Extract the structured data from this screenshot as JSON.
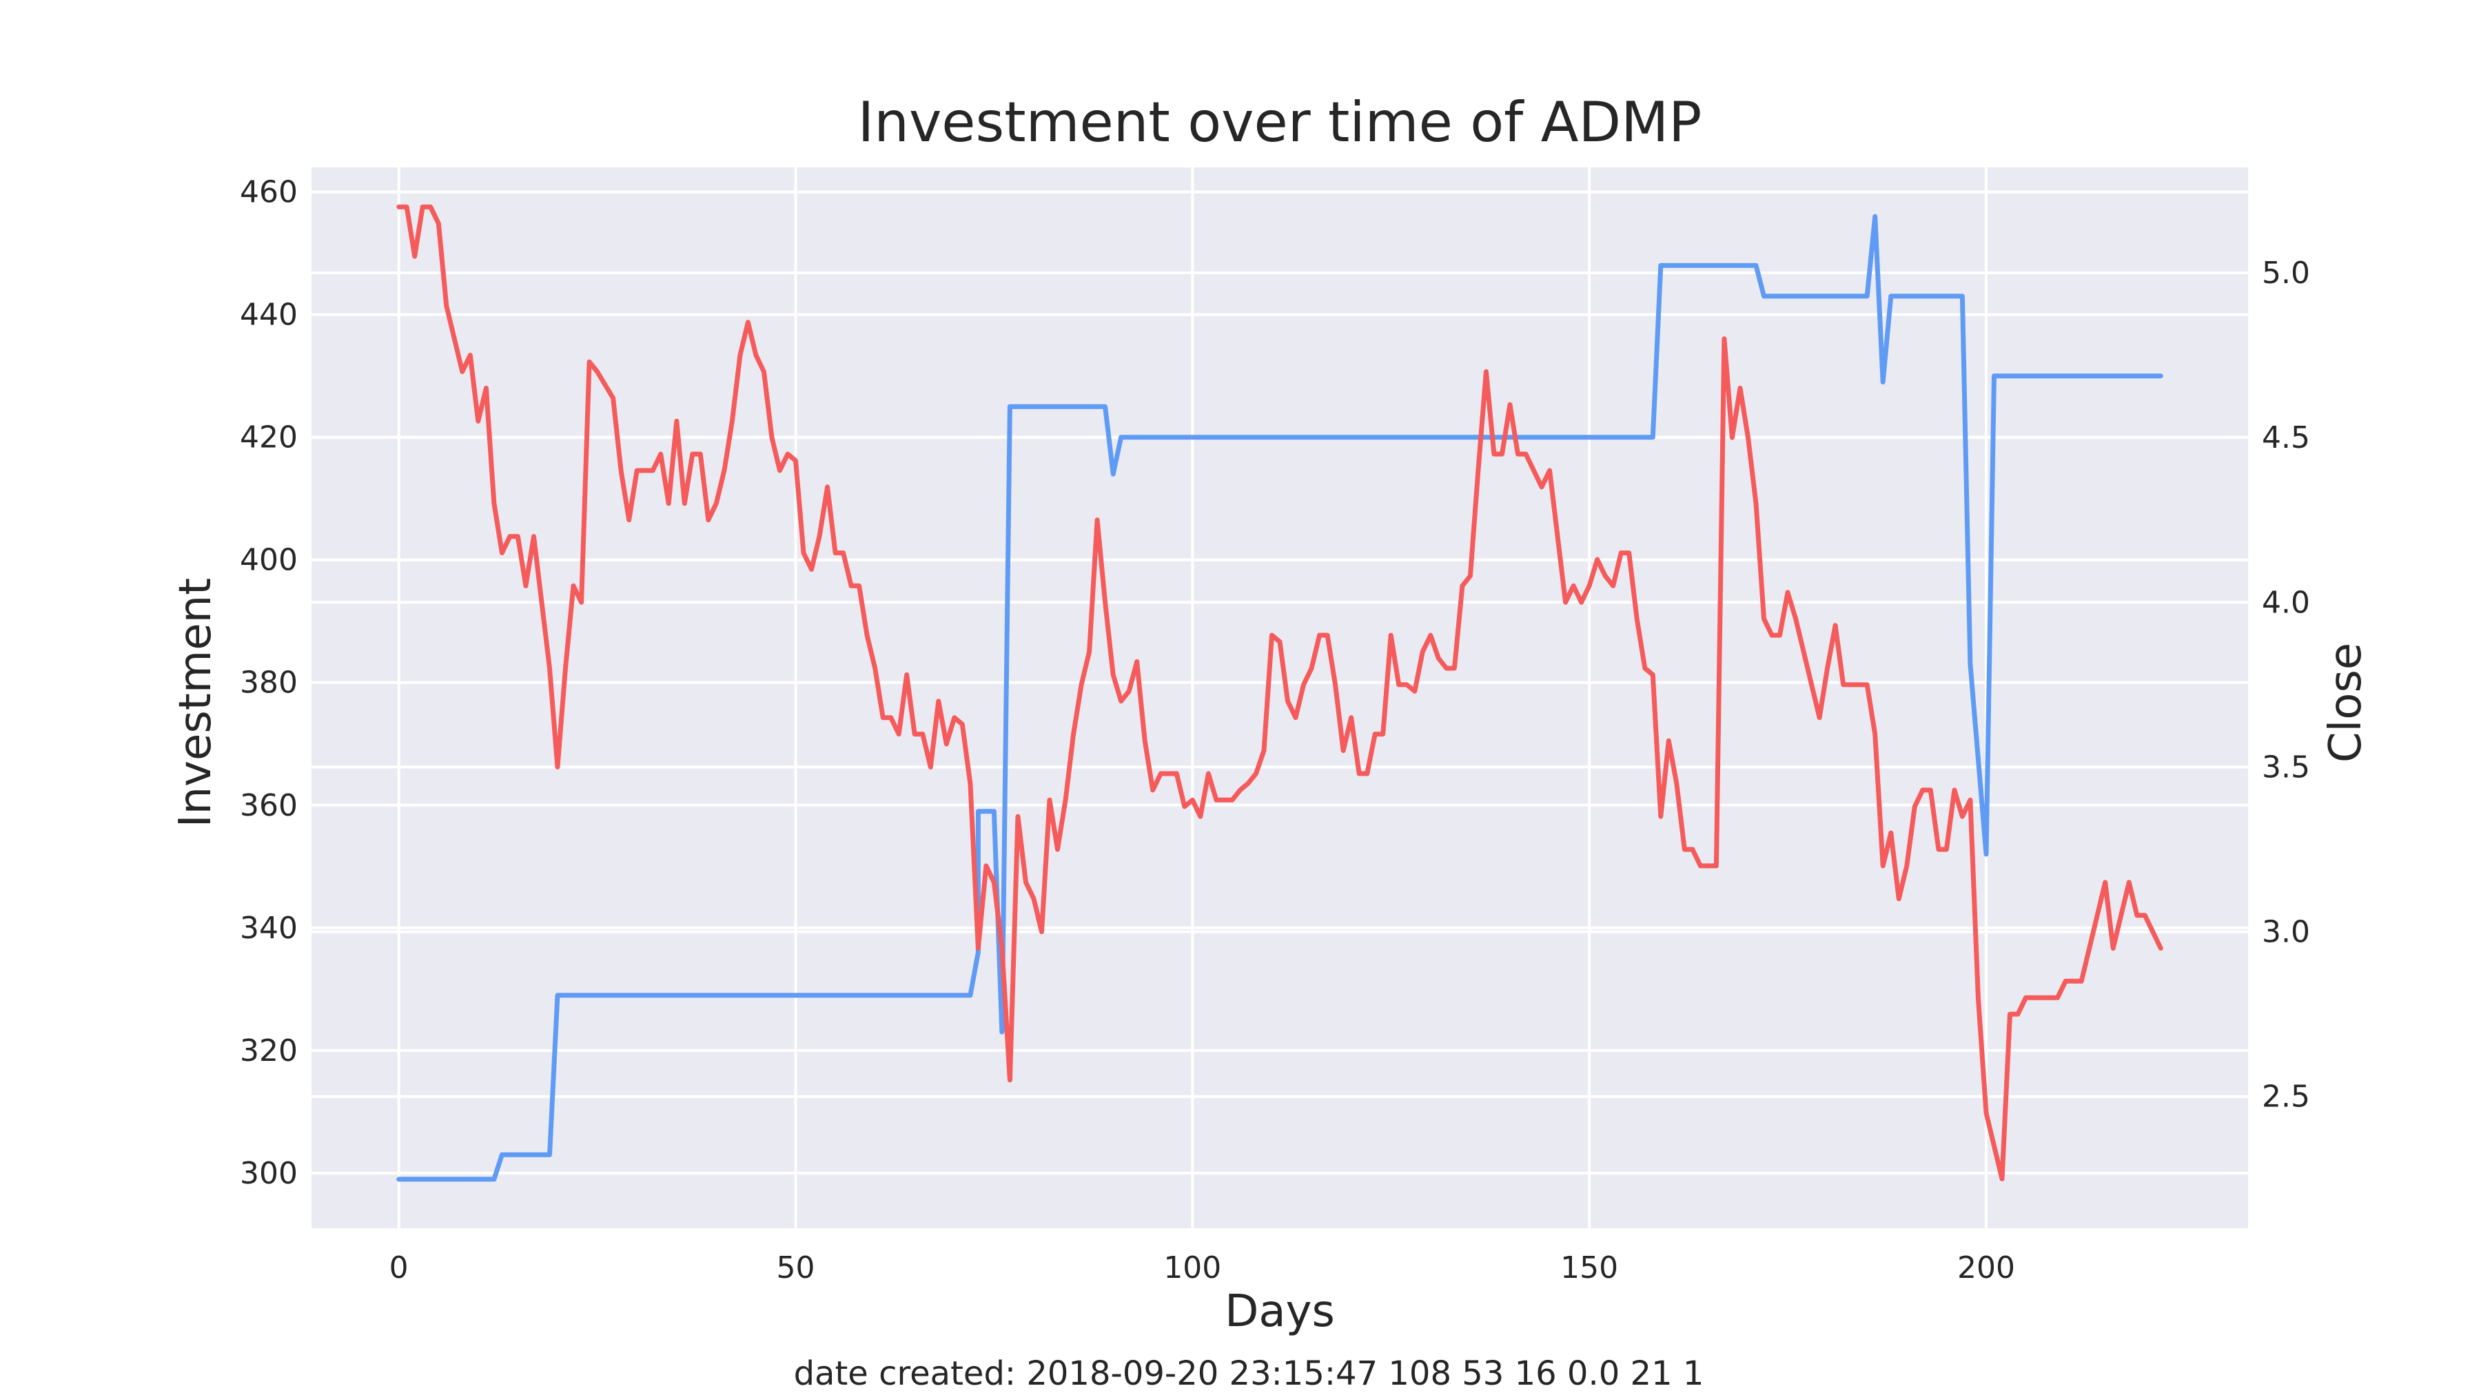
{
  "chart_data": {
    "type": "line",
    "title": "Investment over time of ADMP",
    "xlabel": "Days",
    "ylabel_left": "Investment",
    "ylabel_right": "Close",
    "xlim": [
      -11,
      233
    ],
    "ylim_left": [
      291,
      464
    ],
    "ylim_right": [
      2.1,
      5.32
    ],
    "xticks": [
      0,
      50,
      100,
      150,
      200
    ],
    "yticks_left": [
      300,
      320,
      340,
      360,
      380,
      400,
      420,
      440,
      460
    ],
    "yticks_right": [
      2.5,
      3.0,
      3.5,
      4.0,
      4.5,
      5.0
    ],
    "grid": true,
    "footer": "date created: 2018-09-20 23:15:47 108 53 16 0.0 21 1",
    "colors": {
      "investment": "#5f9bf5",
      "close": "#f55b5b",
      "background": "#eaeaf2",
      "grid": "#ffffff",
      "text": "#262626"
    },
    "series": [
      {
        "axis": "left",
        "color": "#5f9bf5",
        "points": [
          [
            0,
            299
          ],
          [
            12,
            299
          ],
          [
            13,
            303
          ],
          [
            19,
            303
          ],
          [
            20,
            329
          ],
          [
            72,
            329
          ],
          [
            73,
            336
          ],
          [
            73,
            359
          ],
          [
            75,
            359
          ],
          [
            76,
            323
          ],
          [
            77,
            425
          ],
          [
            89,
            425
          ],
          [
            90,
            414
          ],
          [
            91,
            420
          ],
          [
            158,
            420
          ],
          [
            159,
            448
          ],
          [
            171,
            448
          ],
          [
            172,
            443
          ],
          [
            185,
            443
          ],
          [
            186,
            456
          ],
          [
            187,
            429
          ],
          [
            188,
            443
          ],
          [
            197,
            443
          ],
          [
            198,
            383
          ],
          [
            200,
            352
          ],
          [
            201,
            430
          ],
          [
            222,
            430
          ]
        ]
      },
      {
        "axis": "right",
        "color": "#f55b5b",
        "points": [
          [
            0,
            5.2
          ],
          [
            1,
            5.2
          ],
          [
            2,
            5.05
          ],
          [
            3,
            5.2
          ],
          [
            4,
            5.2
          ],
          [
            5,
            5.15
          ],
          [
            6,
            4.9
          ],
          [
            7,
            4.8
          ],
          [
            8,
            4.7
          ],
          [
            9,
            4.75
          ],
          [
            10,
            4.55
          ],
          [
            11,
            4.65
          ],
          [
            12,
            4.3
          ],
          [
            13,
            4.15
          ],
          [
            14,
            4.2
          ],
          [
            15,
            4.2
          ],
          [
            16,
            4.05
          ],
          [
            17,
            4.2
          ],
          [
            18,
            4.0
          ],
          [
            19,
            3.8
          ],
          [
            20,
            3.5
          ],
          [
            21,
            3.8
          ],
          [
            22,
            4.05
          ],
          [
            23,
            4.0
          ],
          [
            24,
            4.73
          ],
          [
            25,
            4.7
          ],
          [
            26,
            4.66
          ],
          [
            27,
            4.62
          ],
          [
            28,
            4.4
          ],
          [
            29,
            4.25
          ],
          [
            30,
            4.4
          ],
          [
            31,
            4.4
          ],
          [
            32,
            4.4
          ],
          [
            33,
            4.45
          ],
          [
            34,
            4.3
          ],
          [
            35,
            4.55
          ],
          [
            36,
            4.3
          ],
          [
            37,
            4.45
          ],
          [
            38,
            4.45
          ],
          [
            39,
            4.25
          ],
          [
            40,
            4.3
          ],
          [
            41,
            4.4
          ],
          [
            42,
            4.55
          ],
          [
            43,
            4.75
          ],
          [
            44,
            4.85
          ],
          [
            45,
            4.75
          ],
          [
            46,
            4.7
          ],
          [
            47,
            4.5
          ],
          [
            48,
            4.4
          ],
          [
            49,
            4.45
          ],
          [
            50,
            4.43
          ],
          [
            51,
            4.15
          ],
          [
            52,
            4.1
          ],
          [
            53,
            4.2
          ],
          [
            54,
            4.35
          ],
          [
            55,
            4.15
          ],
          [
            56,
            4.15
          ],
          [
            57,
            4.05
          ],
          [
            58,
            4.05
          ],
          [
            59,
            3.9
          ],
          [
            60,
            3.8
          ],
          [
            61,
            3.65
          ],
          [
            62,
            3.65
          ],
          [
            63,
            3.6
          ],
          [
            64,
            3.78
          ],
          [
            65,
            3.6
          ],
          [
            66,
            3.6
          ],
          [
            67,
            3.5
          ],
          [
            68,
            3.7
          ],
          [
            69,
            3.57
          ],
          [
            70,
            3.65
          ],
          [
            71,
            3.63
          ],
          [
            72,
            3.45
          ],
          [
            73,
            2.95
          ],
          [
            74,
            3.2
          ],
          [
            75,
            3.15
          ],
          [
            76,
            2.95
          ],
          [
            77,
            2.55
          ],
          [
            78,
            3.35
          ],
          [
            79,
            3.15
          ],
          [
            80,
            3.1
          ],
          [
            81,
            3.0
          ],
          [
            82,
            3.4
          ],
          [
            83,
            3.25
          ],
          [
            84,
            3.4
          ],
          [
            85,
            3.6
          ],
          [
            86,
            3.75
          ],
          [
            87,
            3.85
          ],
          [
            88,
            4.25
          ],
          [
            89,
            4.0
          ],
          [
            90,
            3.78
          ],
          [
            91,
            3.7
          ],
          [
            92,
            3.73
          ],
          [
            93,
            3.82
          ],
          [
            94,
            3.58
          ],
          [
            95,
            3.43
          ],
          [
            96,
            3.48
          ],
          [
            97,
            3.48
          ],
          [
            98,
            3.48
          ],
          [
            99,
            3.38
          ],
          [
            100,
            3.4
          ],
          [
            101,
            3.35
          ],
          [
            102,
            3.48
          ],
          [
            103,
            3.4
          ],
          [
            104,
            3.4
          ],
          [
            105,
            3.4
          ],
          [
            106,
            3.43
          ],
          [
            107,
            3.45
          ],
          [
            108,
            3.48
          ],
          [
            109,
            3.55
          ],
          [
            110,
            3.9
          ],
          [
            111,
            3.88
          ],
          [
            112,
            3.7
          ],
          [
            113,
            3.65
          ],
          [
            114,
            3.75
          ],
          [
            115,
            3.8
          ],
          [
            116,
            3.9
          ],
          [
            117,
            3.9
          ],
          [
            118,
            3.75
          ],
          [
            119,
            3.55
          ],
          [
            120,
            3.65
          ],
          [
            121,
            3.48
          ],
          [
            122,
            3.48
          ],
          [
            123,
            3.6
          ],
          [
            124,
            3.6
          ],
          [
            125,
            3.9
          ],
          [
            126,
            3.75
          ],
          [
            127,
            3.75
          ],
          [
            128,
            3.73
          ],
          [
            129,
            3.85
          ],
          [
            130,
            3.9
          ],
          [
            131,
            3.83
          ],
          [
            132,
            3.8
          ],
          [
            133,
            3.8
          ],
          [
            134,
            4.05
          ],
          [
            135,
            4.08
          ],
          [
            136,
            4.4
          ],
          [
            137,
            4.7
          ],
          [
            138,
            4.45
          ],
          [
            139,
            4.45
          ],
          [
            140,
            4.6
          ],
          [
            141,
            4.45
          ],
          [
            142,
            4.45
          ],
          [
            143,
            4.4
          ],
          [
            144,
            4.35
          ],
          [
            145,
            4.4
          ],
          [
            146,
            4.2
          ],
          [
            147,
            4.0
          ],
          [
            148,
            4.05
          ],
          [
            149,
            4.0
          ],
          [
            150,
            4.05
          ],
          [
            151,
            4.13
          ],
          [
            152,
            4.08
          ],
          [
            153,
            4.05
          ],
          [
            154,
            4.15
          ],
          [
            155,
            4.15
          ],
          [
            156,
            3.95
          ],
          [
            157,
            3.8
          ],
          [
            158,
            3.78
          ],
          [
            159,
            3.35
          ],
          [
            160,
            3.58
          ],
          [
            161,
            3.45
          ],
          [
            162,
            3.25
          ],
          [
            163,
            3.25
          ],
          [
            164,
            3.2
          ],
          [
            165,
            3.2
          ],
          [
            166,
            3.2
          ],
          [
            167,
            4.8
          ],
          [
            168,
            4.5
          ],
          [
            169,
            4.65
          ],
          [
            170,
            4.5
          ],
          [
            171,
            4.3
          ],
          [
            172,
            3.95
          ],
          [
            173,
            3.9
          ],
          [
            174,
            3.9
          ],
          [
            175,
            4.03
          ],
          [
            176,
            3.95
          ],
          [
            177,
            3.85
          ],
          [
            178,
            3.75
          ],
          [
            179,
            3.65
          ],
          [
            180,
            3.8
          ],
          [
            181,
            3.93
          ],
          [
            182,
            3.75
          ],
          [
            183,
            3.75
          ],
          [
            184,
            3.75
          ],
          [
            185,
            3.75
          ],
          [
            186,
            3.6
          ],
          [
            187,
            3.2
          ],
          [
            188,
            3.3
          ],
          [
            189,
            3.1
          ],
          [
            190,
            3.2
          ],
          [
            191,
            3.38
          ],
          [
            192,
            3.43
          ],
          [
            193,
            3.43
          ],
          [
            194,
            3.25
          ],
          [
            195,
            3.25
          ],
          [
            196,
            3.43
          ],
          [
            197,
            3.35
          ],
          [
            198,
            3.4
          ],
          [
            199,
            2.8
          ],
          [
            200,
            2.45
          ],
          [
            201,
            2.35
          ],
          [
            202,
            2.25
          ],
          [
            203,
            2.75
          ],
          [
            204,
            2.75
          ],
          [
            205,
            2.8
          ],
          [
            206,
            2.8
          ],
          [
            207,
            2.8
          ],
          [
            208,
            2.8
          ],
          [
            209,
            2.8
          ],
          [
            210,
            2.85
          ],
          [
            211,
            2.85
          ],
          [
            212,
            2.85
          ],
          [
            213,
            2.95
          ],
          [
            214,
            3.05
          ],
          [
            215,
            3.15
          ],
          [
            216,
            2.95
          ],
          [
            217,
            3.05
          ],
          [
            218,
            3.15
          ],
          [
            219,
            3.05
          ],
          [
            220,
            3.05
          ],
          [
            221,
            3.0
          ],
          [
            222,
            2.95
          ]
        ]
      }
    ]
  }
}
